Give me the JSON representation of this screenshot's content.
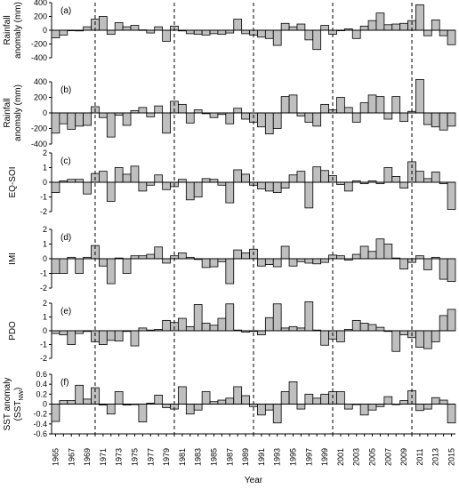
{
  "chart_data": {
    "type": "bar",
    "xlabel": "Year",
    "x_tick_labels": [
      "1965",
      "1967",
      "1969",
      "1971",
      "1973",
      "1975",
      "1977",
      "1979",
      "1981",
      "1983",
      "1985",
      "1987",
      "1989",
      "1991",
      "1993",
      "1995",
      "1997",
      "1999",
      "2001",
      "2003",
      "2005",
      "2007",
      "2009",
      "2011",
      "2013",
      "2015"
    ],
    "years": [
      1965,
      1966,
      1967,
      1968,
      1969,
      1970,
      1971,
      1972,
      1973,
      1974,
      1975,
      1976,
      1977,
      1978,
      1979,
      1980,
      1981,
      1982,
      1983,
      1984,
      1985,
      1986,
      1987,
      1988,
      1989,
      1990,
      1991,
      1992,
      1993,
      1994,
      1995,
      1996,
      1997,
      1998,
      1999,
      2000,
      2001,
      2002,
      2003,
      2004,
      2005,
      2006,
      2007,
      2008,
      2009,
      2010,
      2011,
      2012,
      2013,
      2014,
      2015
    ],
    "dashed_lines_at": [
      1970.5,
      1980.5,
      1990.5,
      2000.5,
      2010.5
    ],
    "panels": [
      {
        "tag": "(a)",
        "ylabel": [
          "Rainfall",
          "anomaly (mm)"
        ],
        "ylim": [
          -400,
          400
        ],
        "yticks": [
          -400,
          -200,
          0,
          200,
          400
        ],
        "ytick_labels": [
          "-400",
          "-200",
          "0",
          "200",
          "400"
        ],
        "values": [
          -110,
          -70,
          0,
          -10,
          50,
          160,
          200,
          -60,
          110,
          50,
          70,
          5,
          -40,
          50,
          -160,
          60,
          -10,
          -50,
          -60,
          -70,
          -50,
          -60,
          -40,
          160,
          -50,
          -70,
          -100,
          -120,
          -220,
          100,
          50,
          90,
          -140,
          -280,
          70,
          -60,
          0,
          20,
          -120,
          60,
          140,
          250,
          80,
          90,
          100,
          140,
          370,
          -80,
          150,
          -80,
          -210
        ]
      },
      {
        "tag": "(b)",
        "ylabel": [
          "Rainfall",
          "anomaly (mm)"
        ],
        "ylim": [
          -400,
          400
        ],
        "yticks": [
          -400,
          -200,
          0,
          200,
          400
        ],
        "ytick_labels": [
          "-400",
          "-200",
          "0",
          "200",
          "400"
        ],
        "values": [
          -260,
          -140,
          -210,
          -170,
          -160,
          80,
          -60,
          -310,
          -30,
          -160,
          30,
          70,
          -50,
          90,
          -260,
          150,
          110,
          -130,
          40,
          -10,
          -60,
          -20,
          -140,
          60,
          -80,
          -120,
          -180,
          -270,
          -200,
          210,
          230,
          -40,
          -120,
          -170,
          110,
          40,
          200,
          70,
          -120,
          130,
          230,
          210,
          -80,
          210,
          -110,
          20,
          430,
          -150,
          -180,
          -220,
          -170
        ]
      },
      {
        "tag": "(c)",
        "ylabel": [
          "EQ-SOI"
        ],
        "ylim": [
          -2,
          2
        ],
        "yticks": [
          -2,
          -1,
          0,
          1,
          2
        ],
        "ytick_labels": [
          "-2",
          "-1",
          "0",
          "1",
          "2"
        ],
        "values": [
          -0.7,
          0.1,
          0.2,
          0.2,
          -0.8,
          0.6,
          0.75,
          -1.3,
          1.0,
          0.55,
          1.1,
          -0.6,
          -0.2,
          0.5,
          -0.5,
          -0.3,
          0.2,
          -1.2,
          -1.0,
          0.25,
          0.2,
          -0.2,
          -1.4,
          0.85,
          0.55,
          -0.2,
          -0.45,
          -0.6,
          -0.7,
          -0.4,
          0.5,
          0.75,
          -1.75,
          1.05,
          0.8,
          0.45,
          -0.15,
          -0.6,
          0.1,
          -0.1,
          0.1,
          -0.1,
          1.0,
          0.4,
          -0.4,
          1.4,
          0.75,
          0.25,
          0.7,
          -0.1,
          -1.85
        ]
      },
      {
        "tag": "(d)",
        "ylabel": [
          "IMI"
        ],
        "ylim": [
          -2,
          2
        ],
        "yticks": [
          -2,
          -1,
          0,
          1,
          2
        ],
        "ytick_labels": [
          "-2",
          "-1",
          "0",
          "1",
          "2"
        ],
        "values": [
          -1.0,
          -1.0,
          0.1,
          -1.0,
          0.1,
          0.9,
          -0.5,
          -1.7,
          0.05,
          -1.0,
          0.2,
          0.2,
          0.3,
          0.8,
          -0.3,
          0.2,
          0.4,
          0.1,
          -0.05,
          -0.6,
          -0.55,
          -0.2,
          -1.7,
          0.6,
          0.4,
          0.65,
          -0.5,
          -0.4,
          -0.55,
          0.85,
          -0.5,
          -0.2,
          -0.3,
          -0.35,
          -0.25,
          0.25,
          0.2,
          -0.1,
          0.3,
          0.85,
          0.5,
          1.35,
          1.0,
          0.05,
          -0.7,
          -0.25,
          0.2,
          -0.75,
          0.1,
          -1.4,
          -1.55
        ]
      },
      {
        "tag": "(e)",
        "ylabel": [
          "PDO"
        ],
        "ylim": [
          -2,
          2
        ],
        "yticks": [
          -2,
          -1,
          0,
          1,
          2
        ],
        "ytick_labels": [
          "-2",
          "-1",
          "0",
          "1",
          "2"
        ],
        "values": [
          -0.2,
          -0.3,
          -1.0,
          -0.2,
          -0.05,
          -0.8,
          -1.0,
          -0.7,
          -0.75,
          -0.05,
          -1.1,
          0.2,
          0.05,
          0.1,
          0.75,
          0.6,
          0.9,
          0.3,
          1.9,
          0.55,
          0.4,
          0.9,
          1.95,
          0.05,
          -0.1,
          -0.05,
          -0.3,
          0.95,
          1.95,
          0.2,
          0.3,
          0.2,
          2.1,
          0.05,
          -1.05,
          -0.6,
          -0.8,
          0.1,
          0.75,
          0.55,
          0.45,
          0.25,
          -0.05,
          -1.5,
          -0.3,
          -0.5,
          -1.2,
          -1.3,
          -0.8,
          1.1,
          1.55
        ]
      },
      {
        "tag": "(f)",
        "ylabel": [
          "SST anomaly",
          "(SST"
        ],
        "ylabel_sub": "NW",
        "ylabel_tail": ")",
        "ylim": [
          -0.6,
          0.6
        ],
        "yticks": [
          -0.6,
          -0.4,
          -0.2,
          0,
          0.2,
          0.4,
          0.6
        ],
        "ytick_labels": [
          "-0.6",
          "-0.4",
          "-0.2",
          "0",
          "0.2",
          "0.4",
          "0.6"
        ],
        "values": [
          -0.35,
          0.07,
          0.07,
          0.38,
          0.1,
          0.33,
          -0.02,
          -0.2,
          0.25,
          -0.02,
          0.0,
          -0.36,
          0.02,
          0.18,
          -0.07,
          -0.1,
          0.35,
          -0.2,
          -0.12,
          0.25,
          0.05,
          0.08,
          0.12,
          0.35,
          0.17,
          -0.05,
          -0.22,
          -0.12,
          -0.38,
          0.25,
          0.45,
          -0.1,
          0.2,
          0.12,
          0.2,
          0.25,
          0.25,
          -0.1,
          0.0,
          -0.22,
          -0.12,
          -0.05,
          0.15,
          0.0,
          0.07,
          0.27,
          -0.13,
          -0.1,
          0.13,
          0.08,
          -0.38
        ]
      }
    ]
  }
}
